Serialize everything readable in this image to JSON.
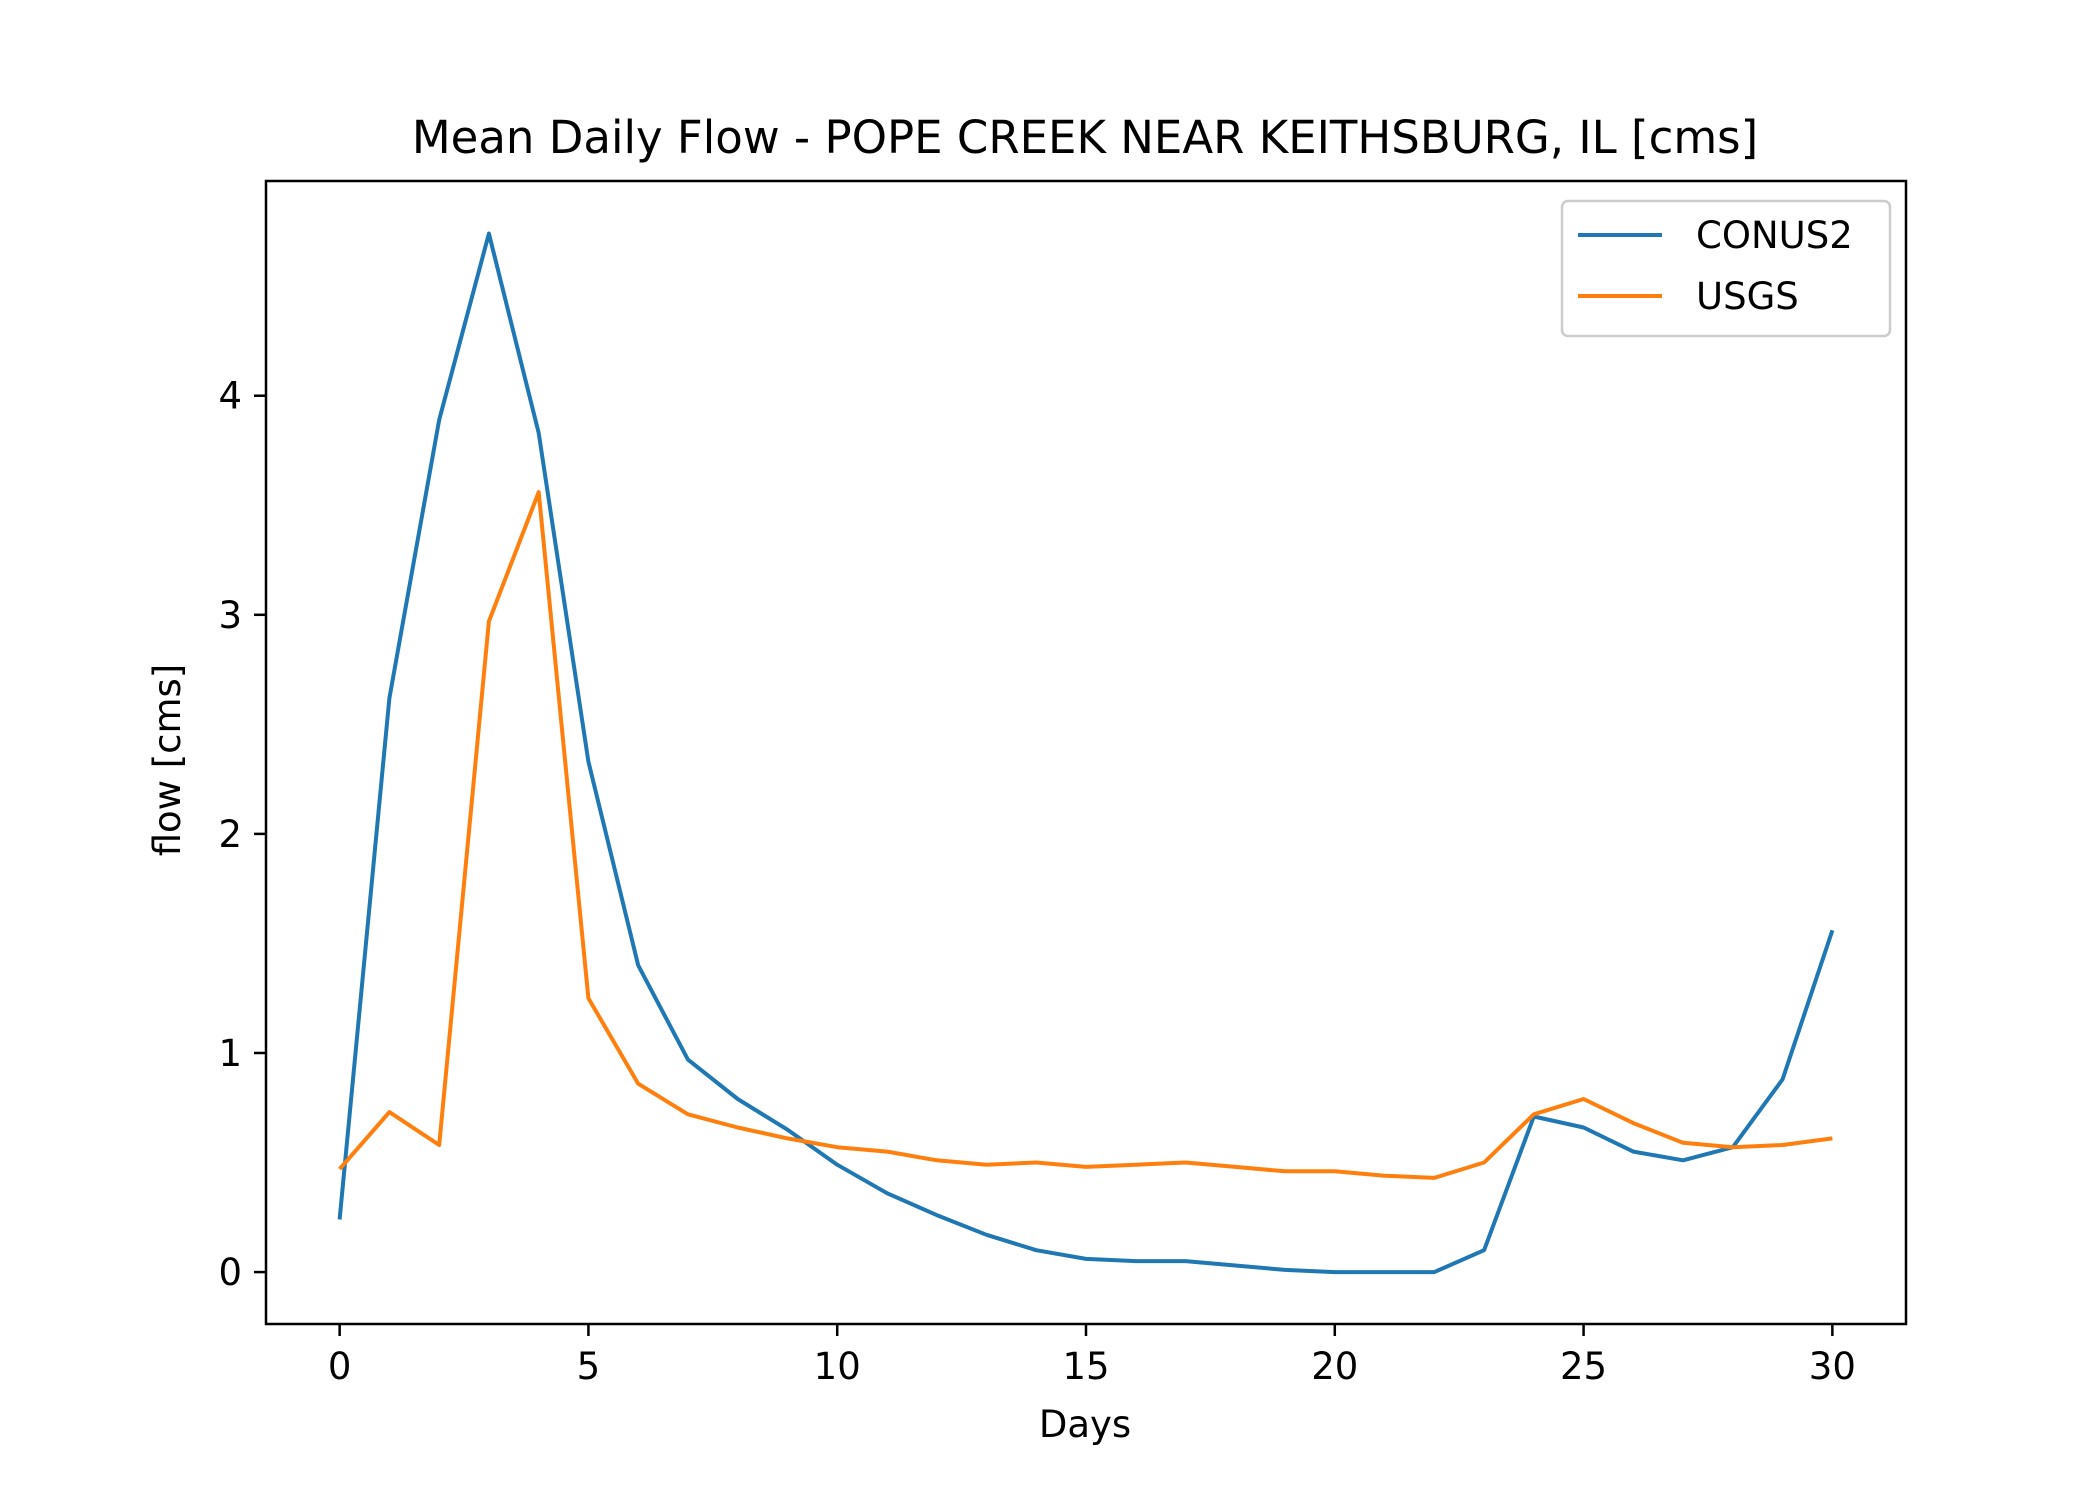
{
  "chart_data": {
    "type": "line",
    "title": "Mean Daily Flow - POPE CREEK NEAR KEITHSBURG, IL [cms]",
    "xlabel": "Days",
    "ylabel": "flow [cms]",
    "xlim": [
      -1.48,
      31.48
    ],
    "ylim": [
      -0.237,
      4.98
    ],
    "xticks": [
      0,
      5,
      10,
      15,
      20,
      25,
      30
    ],
    "yticks": [
      0,
      1,
      2,
      3,
      4
    ],
    "grid": false,
    "legend_position": "top-right",
    "x": [
      0,
      1,
      2,
      3,
      4,
      5,
      6,
      7,
      8,
      9,
      10,
      11,
      12,
      13,
      14,
      15,
      16,
      17,
      18,
      19,
      20,
      21,
      22,
      23,
      24,
      25,
      26,
      27,
      28,
      29,
      30
    ],
    "series": [
      {
        "name": "CONUS2",
        "color": "#1f77b4",
        "values": [
          0.24,
          2.62,
          3.89,
          4.74,
          3.83,
          2.33,
          1.4,
          0.97,
          0.79,
          0.65,
          0.49,
          0.36,
          0.26,
          0.17,
          0.1,
          0.06,
          0.05,
          0.05,
          0.03,
          0.01,
          0.0,
          0.0,
          0.0,
          0.1,
          0.71,
          0.66,
          0.55,
          0.51,
          0.57,
          0.88,
          1.56
        ]
      },
      {
        "name": "USGS",
        "color": "#ff7f0e",
        "values": [
          0.47,
          0.73,
          0.58,
          2.97,
          3.56,
          1.25,
          0.86,
          0.72,
          0.66,
          0.61,
          0.57,
          0.55,
          0.51,
          0.49,
          0.5,
          0.48,
          0.49,
          0.5,
          0.48,
          0.46,
          0.46,
          0.44,
          0.43,
          0.5,
          0.72,
          0.79,
          0.68,
          0.59,
          0.57,
          0.58,
          0.61
        ]
      }
    ]
  }
}
